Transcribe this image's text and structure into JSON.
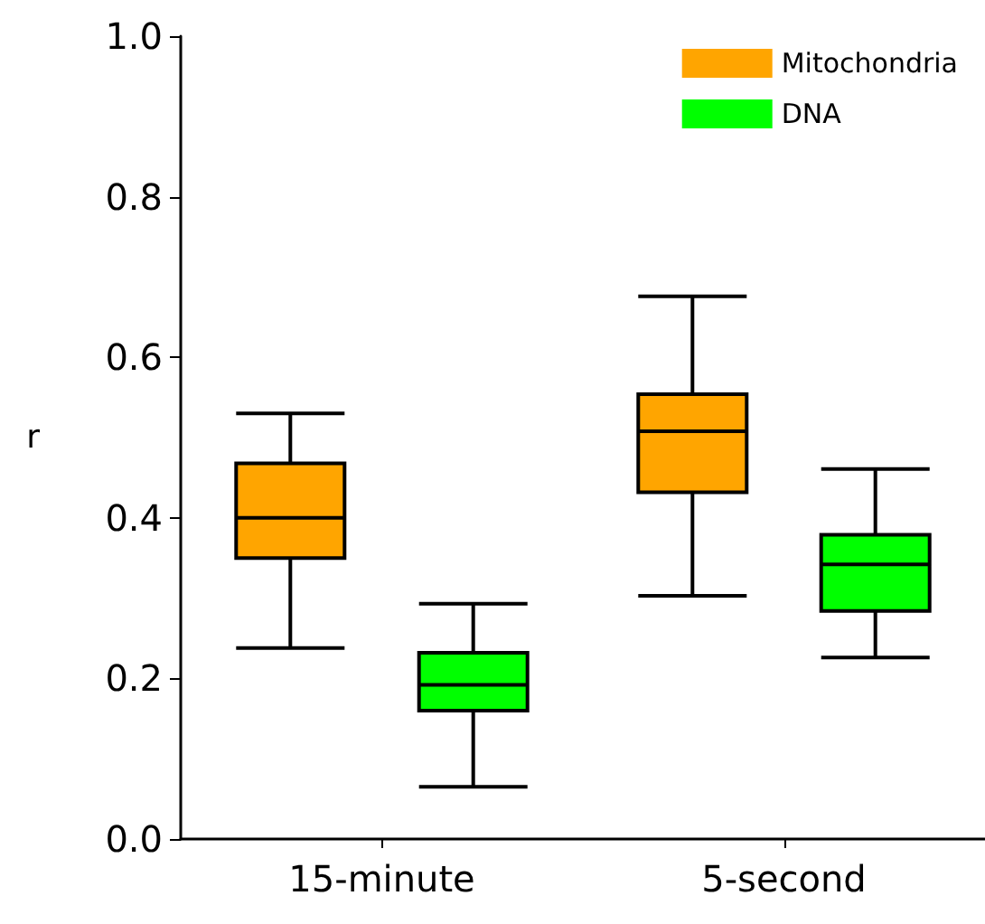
{
  "chart_data": {
    "type": "box",
    "ylabel": "r",
    "categories": [
      "15-minute",
      "5-second"
    ],
    "ylim": [
      0,
      1
    ],
    "yticks": [
      {
        "value": 0,
        "label": "0.0"
      },
      {
        "value": 0.2,
        "label": "0.2"
      },
      {
        "value": 0.4,
        "label": "0.4"
      },
      {
        "value": 0.6,
        "label": "0.6"
      },
      {
        "value": 0.8,
        "label": "0.8"
      },
      {
        "value": 1,
        "label": "1.0"
      }
    ],
    "grid": false,
    "legend": "top right",
    "series": [
      {
        "name": "Mitochondria",
        "color": "#ffa500",
        "boxes": [
          {
            "low": 0.238,
            "q1": 0.35,
            "median": 0.4,
            "q3": 0.468,
            "high": 0.53
          },
          {
            "low": 0.303,
            "q1": 0.432,
            "median": 0.508,
            "q3": 0.554,
            "high": 0.676
          }
        ]
      },
      {
        "name": "DNA",
        "color": "#00ff00",
        "boxes": [
          {
            "low": 0.065,
            "q1": 0.16,
            "median": 0.192,
            "q3": 0.232,
            "high": 0.293
          },
          {
            "low": 0.226,
            "q1": 0.284,
            "median": 0.342,
            "q3": 0.379,
            "high": 0.461
          }
        ]
      }
    ]
  }
}
